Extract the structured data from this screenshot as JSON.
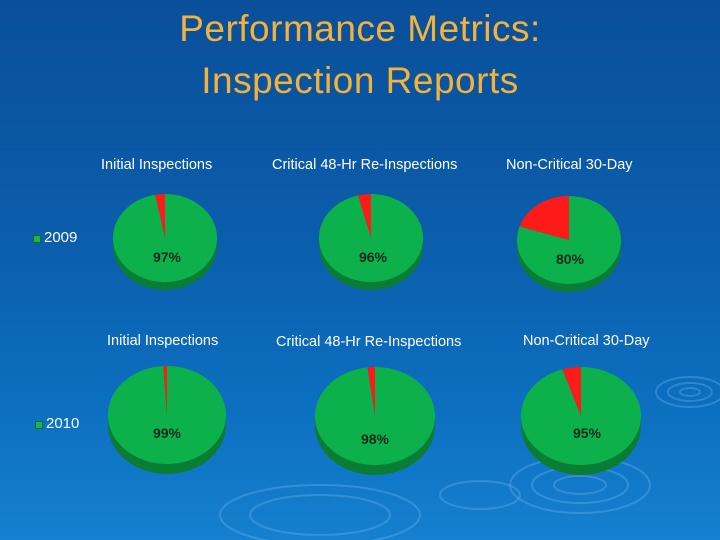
{
  "title": {
    "line1": "Performance Metrics:",
    "line2": "Inspection Reports"
  },
  "colors": {
    "background": "#0b5eac",
    "title": "#f2b23c",
    "pie_green": "#0db14b",
    "pie_green_side": "#0a7d35",
    "pie_red": "#ff1a1a",
    "pie_red_side": "#b30f0f",
    "legend_marker": "#22b24c"
  },
  "chart_data": [
    {
      "type": "pie",
      "year": "2009",
      "title": "Initial Inspections",
      "values": [
        97,
        3
      ],
      "data_label": "97%"
    },
    {
      "type": "pie",
      "year": "2009",
      "title": "Critical 48-Hr Re-Inspections",
      "values": [
        96,
        4
      ],
      "data_label": "96%"
    },
    {
      "type": "pie",
      "year": "2009",
      "title": "Non-Critical 30-Day",
      "values": [
        80,
        20
      ],
      "data_label": "80%"
    },
    {
      "type": "pie",
      "year": "2010",
      "title": "Initial Inspections",
      "values": [
        99,
        1
      ],
      "data_label": "99%"
    },
    {
      "type": "pie",
      "year": "2010",
      "title": "Critical 48-Hr Re-Inspections",
      "values": [
        98,
        2
      ],
      "data_label": "98%"
    },
    {
      "type": "pie",
      "year": "2010",
      "title": "Non-Critical 30-Day",
      "values": [
        95,
        5
      ],
      "data_label": "95%"
    }
  ],
  "legend": {
    "row1": "2009",
    "row2": "2010"
  }
}
